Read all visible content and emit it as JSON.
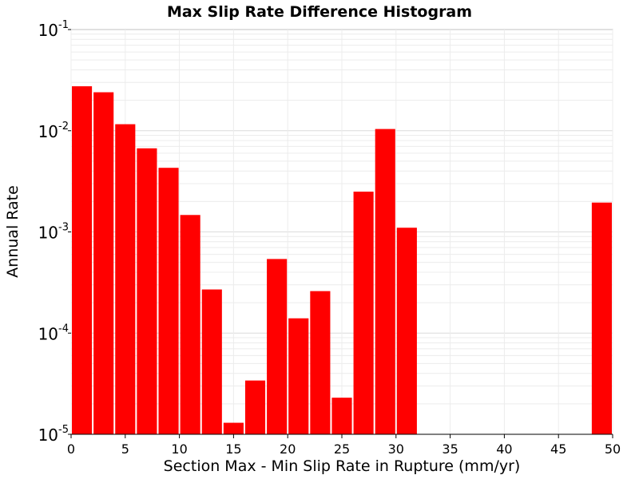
{
  "chart_data": {
    "type": "bar",
    "title": "Max Slip Rate Difference Histogram",
    "xlabel": "Section Max - Min Slip Rate in Rupture (mm/yr)",
    "ylabel": "Annual Rate",
    "xlim": [
      0,
      50
    ],
    "ylim": [
      1e-05,
      0.1
    ],
    "yscale": "log",
    "grid": true,
    "bar_color": "#ff0000",
    "bin_width": 2,
    "x_ticks": [
      "0",
      "5",
      "10",
      "15",
      "20",
      "25",
      "30",
      "35",
      "40",
      "45",
      "50"
    ],
    "y_ticks": [
      {
        "base": "10",
        "exp": "-1",
        "value": 0.1
      },
      {
        "base": "10",
        "exp": "-2",
        "value": 0.01
      },
      {
        "base": "10",
        "exp": "-3",
        "value": 0.001
      },
      {
        "base": "10",
        "exp": "-4",
        "value": 0.0001
      },
      {
        "base": "10",
        "exp": "-5",
        "value": 1e-05
      }
    ],
    "bins": [
      {
        "x": 1,
        "value": 0.0275
      },
      {
        "x": 3,
        "value": 0.024
      },
      {
        "x": 5,
        "value": 0.0116
      },
      {
        "x": 7,
        "value": 0.0067
      },
      {
        "x": 9,
        "value": 0.0043
      },
      {
        "x": 11,
        "value": 0.00147
      },
      {
        "x": 13,
        "value": 0.00027
      },
      {
        "x": 15,
        "value": 1.3e-05
      },
      {
        "x": 17,
        "value": 3.4e-05
      },
      {
        "x": 19,
        "value": 0.00054
      },
      {
        "x": 21,
        "value": 0.00014
      },
      {
        "x": 23,
        "value": 0.00026
      },
      {
        "x": 25,
        "value": 2.3e-05
      },
      {
        "x": 27,
        "value": 0.0025
      },
      {
        "x": 29,
        "value": 0.0104
      },
      {
        "x": 31,
        "value": 0.0011
      },
      {
        "x": 49,
        "value": 0.00195
      }
    ]
  }
}
